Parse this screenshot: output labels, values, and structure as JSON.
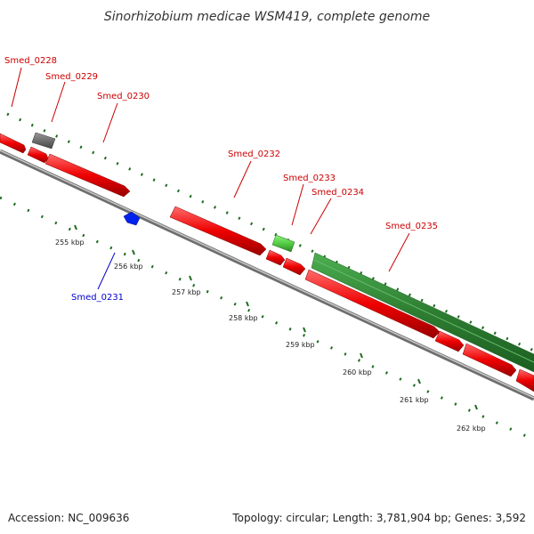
{
  "title": "Sinorhizobium medicae WSM419, complete genome",
  "footer": {
    "accession": "Accession: NC_009636",
    "topology": "Topology: circular; Length: 3,781,904 bp; Genes: 3,592"
  },
  "colors": {
    "forward_gene": "#ee0000",
    "reverse_gene": "#0000ee",
    "rna_gene": "#66dd55",
    "pseudo_gene": "#666666",
    "long_gene": "#33aa33",
    "tick_mark": "#1f6b1f",
    "backbone": "#8c8c8c"
  },
  "scale_labels": [
    "255 kbp",
    "256 kbp",
    "257 kbp",
    "258 kbp",
    "259 kbp",
    "260 kbp",
    "261 kbp",
    "262 kbp"
  ],
  "genes": [
    {
      "id": "Smed_0228",
      "strand": "forward"
    },
    {
      "id": "Smed_0229",
      "strand": "forward"
    },
    {
      "id": "Smed_0230",
      "strand": "forward"
    },
    {
      "id": "Smed_0231",
      "strand": "reverse"
    },
    {
      "id": "Smed_0232",
      "strand": "forward"
    },
    {
      "id": "Smed_0233",
      "strand": "forward"
    },
    {
      "id": "Smed_0234",
      "strand": "forward"
    },
    {
      "id": "Smed_0235",
      "strand": "forward"
    }
  ]
}
